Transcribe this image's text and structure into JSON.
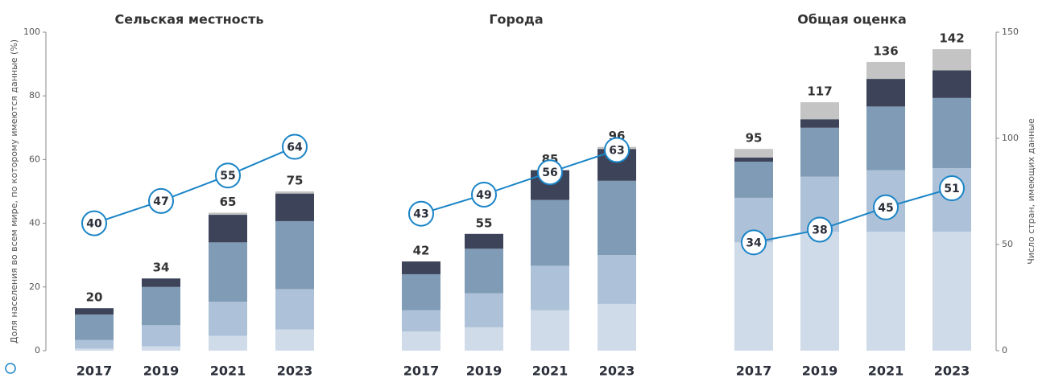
{
  "chart_data": {
    "type": "stacked-bar-line",
    "ylabel": "Доля населения во всем мире, по которому имеются данные (%)",
    "y2label": "Число стран, имеющих данные",
    "ylim": [
      0,
      100
    ],
    "yticks": [
      0,
      20,
      40,
      60,
      80,
      100
    ],
    "y2lim": [
      0,
      150
    ],
    "y2ticks": [
      0,
      50,
      100,
      150
    ],
    "segment_colors": [
      "#cfdbe8",
      "#adc2d8",
      "#7f9bb5",
      "#3d4459",
      "#c4c4c4"
    ],
    "line_color": "#1a84c7",
    "panels": [
      {
        "title": "Сельская местность",
        "categories": [
          "2017",
          "2019",
          "2021",
          "2023"
        ],
        "totals": [
          20,
          34,
          65,
          75
        ],
        "segments": [
          [
            1,
            4,
            12,
            3,
            0
          ],
          [
            2,
            10,
            18,
            4,
            0
          ],
          [
            7,
            16,
            28,
            13,
            1
          ],
          [
            10,
            19,
            32,
            13,
            1
          ]
        ],
        "line": [
          40,
          47,
          55,
          64
        ]
      },
      {
        "title": "Города",
        "categories": [
          "2017",
          "2019",
          "2021",
          "2023"
        ],
        "totals": [
          42,
          55,
          85,
          96
        ],
        "segments": [
          [
            9,
            10,
            17,
            6,
            0
          ],
          [
            11,
            16,
            21,
            7,
            0
          ],
          [
            19,
            21,
            31,
            14,
            0
          ],
          [
            22,
            23,
            35,
            15,
            1
          ]
        ],
        "line": [
          43,
          49,
          56,
          63
        ]
      },
      {
        "title": "Общая оценка",
        "categories": [
          "2017",
          "2019",
          "2021",
          "2023"
        ],
        "totals": [
          95,
          117,
          136,
          142
        ],
        "segments": [
          [
            51,
            21,
            17,
            2,
            4
          ],
          [
            56,
            26,
            23,
            4,
            8
          ],
          [
            56,
            29,
            30,
            13,
            8
          ],
          [
            56,
            30,
            33,
            13,
            10
          ]
        ],
        "line": [
          34,
          38,
          45,
          51
        ]
      }
    ]
  }
}
